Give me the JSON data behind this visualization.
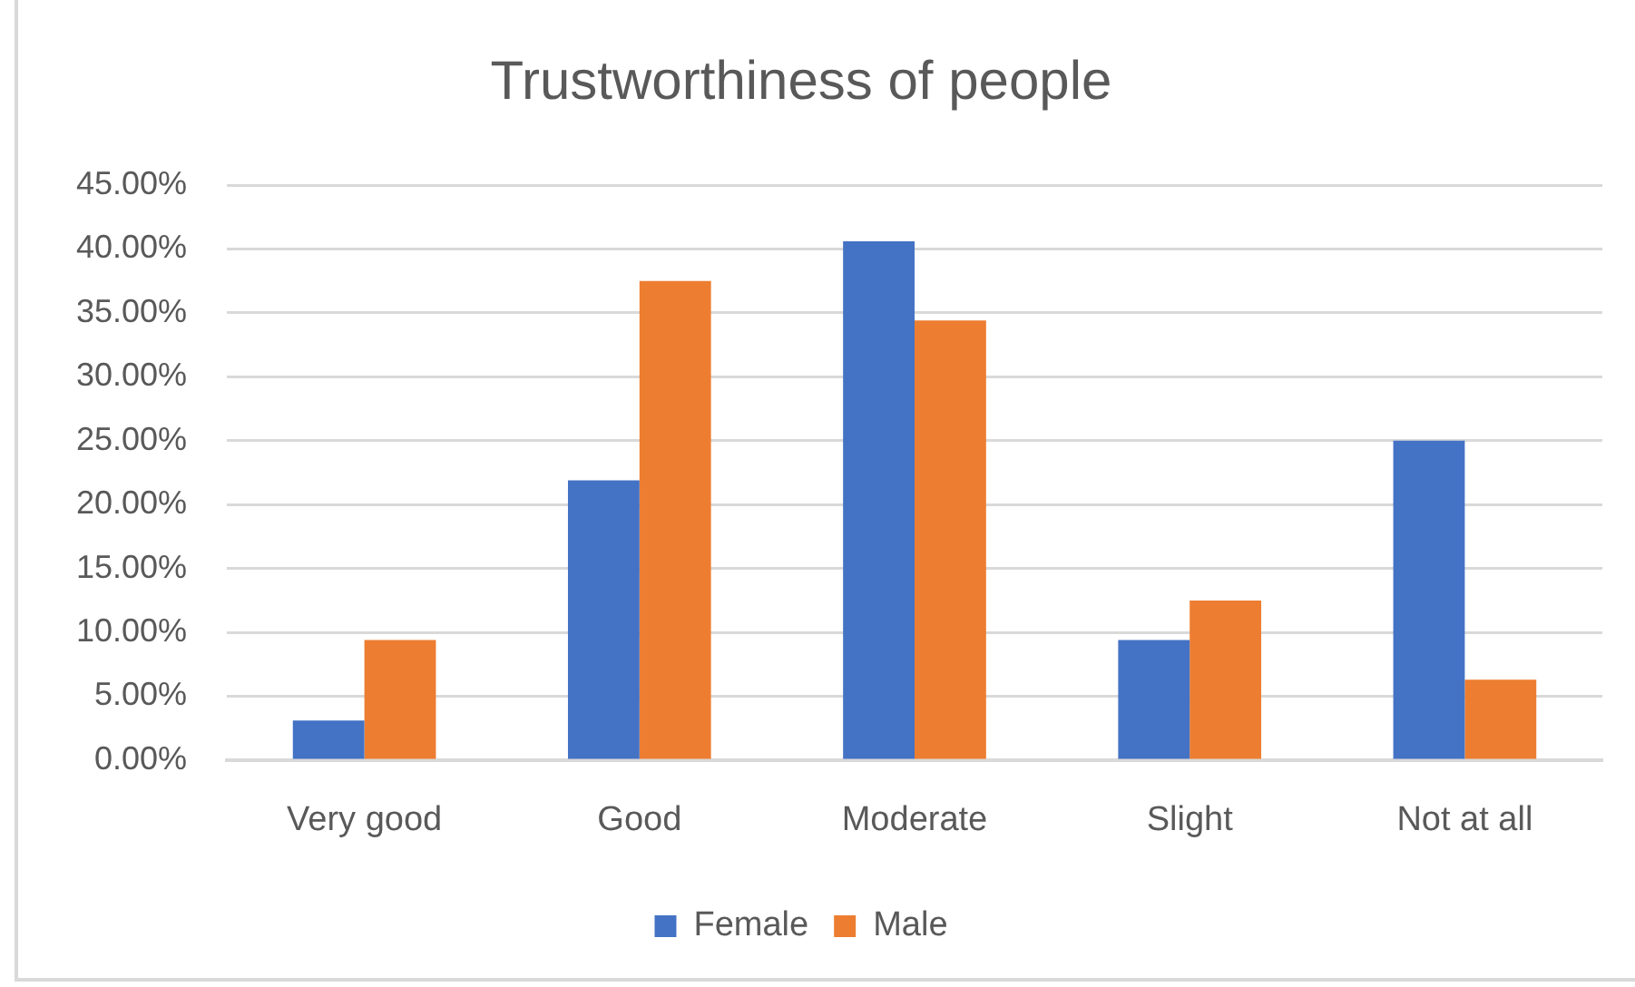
{
  "chart_data": {
    "type": "bar",
    "title": "Trustworthiness of people",
    "categories": [
      "Very good",
      "Good",
      "Moderate",
      "Slight",
      "Not at all"
    ],
    "series": [
      {
        "name": "Female",
        "color": "#4472c4",
        "values": [
          3.1,
          21.9,
          40.6,
          9.4,
          25
        ]
      },
      {
        "name": "Male",
        "color": "#ed7d31",
        "values": [
          9.4,
          37.5,
          34.4,
          12.5,
          6.3
        ]
      }
    ],
    "ylim": [
      0,
      45
    ],
    "yticks": [
      {
        "value": 0,
        "label": "0.00%"
      },
      {
        "value": 5,
        "label": "5.00%"
      },
      {
        "value": 10,
        "label": "10.00%"
      },
      {
        "value": 15,
        "label": "15.00%"
      },
      {
        "value": 20,
        "label": "20.00%"
      },
      {
        "value": 25,
        "label": "25.00%"
      },
      {
        "value": 30,
        "label": "30.00%"
      },
      {
        "value": 35,
        "label": "35.00%"
      },
      {
        "value": 40,
        "label": "40.00%"
      },
      {
        "value": 45,
        "label": "45.00%"
      }
    ],
    "grid": "y",
    "legend": "bottom"
  }
}
